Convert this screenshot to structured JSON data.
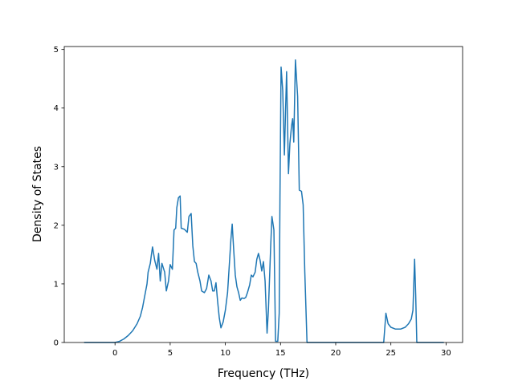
{
  "chart_data": {
    "type": "line",
    "title": "",
    "xlabel": "Frequency (THz)",
    "ylabel": "Density of States",
    "xlim": [
      -4.6,
      31.5
    ],
    "ylim": [
      0,
      5.05
    ],
    "xticks": [
      0,
      5,
      10,
      15,
      20,
      25,
      30
    ],
    "xtick_labels": [
      "0",
      "5",
      "10",
      "15",
      "20",
      "25",
      "30"
    ],
    "yticks": [
      0,
      1,
      2,
      3,
      4,
      5
    ],
    "ytick_labels": [
      "0",
      "1",
      "2",
      "3",
      "4",
      "5"
    ],
    "grid": false,
    "series": [
      {
        "name": "",
        "color": "#1f77b4",
        "points": [
          [
            -2.8,
            0
          ],
          [
            0,
            0
          ],
          [
            0.4,
            0.02
          ],
          [
            0.8,
            0.06
          ],
          [
            1.2,
            0.12
          ],
          [
            1.6,
            0.2
          ],
          [
            2.0,
            0.32
          ],
          [
            2.3,
            0.45
          ],
          [
            2.5,
            0.6
          ],
          [
            2.7,
            0.8
          ],
          [
            2.9,
            1.0
          ],
          [
            3.0,
            1.2
          ],
          [
            3.2,
            1.35
          ],
          [
            3.3,
            1.5
          ],
          [
            3.4,
            1.63
          ],
          [
            3.6,
            1.4
          ],
          [
            3.8,
            1.25
          ],
          [
            3.95,
            1.52
          ],
          [
            4.1,
            1.05
          ],
          [
            4.25,
            1.35
          ],
          [
            4.5,
            1.2
          ],
          [
            4.65,
            0.88
          ],
          [
            4.85,
            1.05
          ],
          [
            5.0,
            1.33
          ],
          [
            5.2,
            1.25
          ],
          [
            5.35,
            1.92
          ],
          [
            5.5,
            1.95
          ],
          [
            5.6,
            2.3
          ],
          [
            5.75,
            2.47
          ],
          [
            5.9,
            2.5
          ],
          [
            6.0,
            1.95
          ],
          [
            6.3,
            1.93
          ],
          [
            6.55,
            1.88
          ],
          [
            6.7,
            2.15
          ],
          [
            6.9,
            2.2
          ],
          [
            7.05,
            1.65
          ],
          [
            7.2,
            1.38
          ],
          [
            7.35,
            1.35
          ],
          [
            7.5,
            1.2
          ],
          [
            7.7,
            1.05
          ],
          [
            7.85,
            0.88
          ],
          [
            8.1,
            0.85
          ],
          [
            8.3,
            0.92
          ],
          [
            8.5,
            1.15
          ],
          [
            8.7,
            1.05
          ],
          [
            8.85,
            0.88
          ],
          [
            9.0,
            0.88
          ],
          [
            9.15,
            1.02
          ],
          [
            9.3,
            0.7
          ],
          [
            9.45,
            0.42
          ],
          [
            9.6,
            0.25
          ],
          [
            9.8,
            0.35
          ],
          [
            10.0,
            0.55
          ],
          [
            10.2,
            0.85
          ],
          [
            10.35,
            1.3
          ],
          [
            10.5,
            1.75
          ],
          [
            10.62,
            2.02
          ],
          [
            10.75,
            1.6
          ],
          [
            10.9,
            1.15
          ],
          [
            11.05,
            0.95
          ],
          [
            11.2,
            0.85
          ],
          [
            11.35,
            0.72
          ],
          [
            11.5,
            0.76
          ],
          [
            11.7,
            0.75
          ],
          [
            11.85,
            0.77
          ],
          [
            12.0,
            0.85
          ],
          [
            12.2,
            0.98
          ],
          [
            12.35,
            1.15
          ],
          [
            12.5,
            1.12
          ],
          [
            12.7,
            1.2
          ],
          [
            12.85,
            1.42
          ],
          [
            13.0,
            1.52
          ],
          [
            13.15,
            1.4
          ],
          [
            13.3,
            1.22
          ],
          [
            13.45,
            1.38
          ],
          [
            13.6,
            1.05
          ],
          [
            13.78,
            0.16
          ],
          [
            13.9,
            0.55
          ],
          [
            14.1,
            1.6
          ],
          [
            14.22,
            2.15
          ],
          [
            14.4,
            1.92
          ],
          [
            14.55,
            0.02
          ],
          [
            14.75,
            0.02
          ],
          [
            14.88,
            0.5
          ],
          [
            14.95,
            2.5
          ],
          [
            15.05,
            4.7
          ],
          [
            15.2,
            4.3
          ],
          [
            15.35,
            3.2
          ],
          [
            15.55,
            4.62
          ],
          [
            15.72,
            2.88
          ],
          [
            15.85,
            3.4
          ],
          [
            16.0,
            3.7
          ],
          [
            16.1,
            3.82
          ],
          [
            16.2,
            3.42
          ],
          [
            16.35,
            4.82
          ],
          [
            16.55,
            4.2
          ],
          [
            16.7,
            2.6
          ],
          [
            16.9,
            2.58
          ],
          [
            17.05,
            2.35
          ],
          [
            17.2,
            1.2
          ],
          [
            17.4,
            0
          ],
          [
            24.35,
            0
          ],
          [
            24.55,
            0.5
          ],
          [
            24.75,
            0.32
          ],
          [
            25.0,
            0.26
          ],
          [
            25.4,
            0.23
          ],
          [
            25.9,
            0.23
          ],
          [
            26.3,
            0.26
          ],
          [
            26.6,
            0.32
          ],
          [
            26.85,
            0.4
          ],
          [
            27.0,
            0.55
          ],
          [
            27.15,
            1.42
          ],
          [
            27.25,
            0.8
          ],
          [
            27.35,
            0
          ],
          [
            29.8,
            0
          ]
        ]
      }
    ]
  }
}
